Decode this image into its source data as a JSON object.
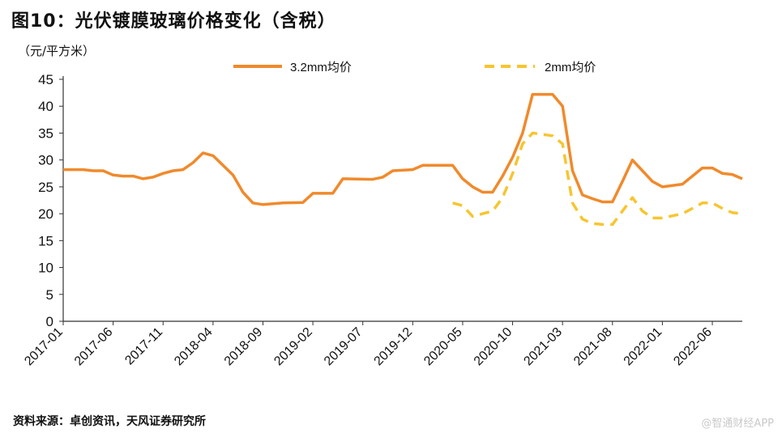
{
  "title": "图10：光伏镀膜玻璃价格变化（含税）",
  "unit": "（元/平方米）",
  "source": "资料来源：卓创资讯，天风证券研究所",
  "watermark": "@智通财经APP",
  "colors": {
    "series_3_2mm": "#F08A2C",
    "series_2mm": "#F7C531",
    "axis": "#333333"
  },
  "chart_data": {
    "type": "line",
    "xlabel": "",
    "ylabel": "",
    "ylim": [
      0,
      45
    ],
    "yticks": [
      0,
      5,
      10,
      15,
      20,
      25,
      30,
      35,
      40,
      45
    ],
    "xlim": [
      "2017-01",
      "2022-09"
    ],
    "xticks": [
      "2017-01",
      "2017-06",
      "2017-11",
      "2018-04",
      "2018-09",
      "2019-02",
      "2019-07",
      "2019-12",
      "2020-05",
      "2020-10",
      "2021-03",
      "2021-08",
      "2022-01",
      "2022-06"
    ],
    "grid": false,
    "legend": "top",
    "series": [
      {
        "name": "3.2mm均价",
        "style": "solid",
        "points": [
          [
            "2017-01",
            28.2
          ],
          [
            "2017-03",
            28.2
          ],
          [
            "2017-04",
            28.0
          ],
          [
            "2017-05",
            28.0
          ],
          [
            "2017-06",
            27.2
          ],
          [
            "2017-07",
            27.0
          ],
          [
            "2017-08",
            27.0
          ],
          [
            "2017-09",
            26.5
          ],
          [
            "2017-10",
            26.8
          ],
          [
            "2017-11",
            27.5
          ],
          [
            "2017-12",
            28.0
          ],
          [
            "2018-01",
            28.2
          ],
          [
            "2018-02",
            29.5
          ],
          [
            "2018-03",
            31.3
          ],
          [
            "2018-04",
            30.8
          ],
          [
            "2018-05",
            29.0
          ],
          [
            "2018-06",
            27.2
          ],
          [
            "2018-07",
            24.0
          ],
          [
            "2018-08",
            22.0
          ],
          [
            "2018-09",
            21.7
          ],
          [
            "2018-11",
            22.0
          ],
          [
            "2019-01",
            22.1
          ],
          [
            "2019-02",
            23.8
          ],
          [
            "2019-04",
            23.8
          ],
          [
            "2019-05",
            26.5
          ],
          [
            "2019-08",
            26.4
          ],
          [
            "2019-09",
            26.8
          ],
          [
            "2019-10",
            28.0
          ],
          [
            "2019-12",
            28.2
          ],
          [
            "2020-01",
            29.0
          ],
          [
            "2020-04",
            29.0
          ],
          [
            "2020-05",
            26.5
          ],
          [
            "2020-06",
            25.0
          ],
          [
            "2020-07",
            24.0
          ],
          [
            "2020-08",
            24.0
          ],
          [
            "2020-09",
            27.0
          ],
          [
            "2020-10",
            30.5
          ],
          [
            "2020-11",
            35.0
          ],
          [
            "2020-12",
            42.2
          ],
          [
            "2021-02",
            42.2
          ],
          [
            "2021-03",
            40.0
          ],
          [
            "2021-04",
            28.0
          ],
          [
            "2021-05",
            23.5
          ],
          [
            "2021-06",
            22.8
          ],
          [
            "2021-07",
            22.2
          ],
          [
            "2021-08",
            22.2
          ],
          [
            "2021-09",
            26.0
          ],
          [
            "2021-10",
            30.0
          ],
          [
            "2021-11",
            28.0
          ],
          [
            "2021-12",
            26.0
          ],
          [
            "2022-01",
            25.0
          ],
          [
            "2022-03",
            25.5
          ],
          [
            "2022-04",
            27.0
          ],
          [
            "2022-05",
            28.5
          ],
          [
            "2022-06",
            28.5
          ],
          [
            "2022-07",
            27.5
          ],
          [
            "2022-08",
            27.3
          ],
          [
            "2022-09",
            26.5
          ]
        ]
      },
      {
        "name": "2mm均价",
        "style": "dashed",
        "points": [
          [
            "2020-04",
            22.0
          ],
          [
            "2020-05",
            21.5
          ],
          [
            "2020-06",
            19.5
          ],
          [
            "2020-07",
            20.0
          ],
          [
            "2020-08",
            20.5
          ],
          [
            "2020-09",
            23.0
          ],
          [
            "2020-10",
            27.5
          ],
          [
            "2020-11",
            33.0
          ],
          [
            "2020-12",
            35.0
          ],
          [
            "2021-02",
            34.5
          ],
          [
            "2021-03",
            33.0
          ],
          [
            "2021-04",
            22.0
          ],
          [
            "2021-05",
            19.0
          ],
          [
            "2021-06",
            18.2
          ],
          [
            "2021-07",
            18.0
          ],
          [
            "2021-08",
            18.0
          ],
          [
            "2021-09",
            20.5
          ],
          [
            "2021-10",
            23.0
          ],
          [
            "2021-11",
            20.5
          ],
          [
            "2021-12",
            19.2
          ],
          [
            "2022-01",
            19.2
          ],
          [
            "2022-03",
            20.0
          ],
          [
            "2022-04",
            21.0
          ],
          [
            "2022-05",
            22.0
          ],
          [
            "2022-06",
            22.0
          ],
          [
            "2022-07",
            21.0
          ],
          [
            "2022-08",
            20.2
          ],
          [
            "2022-09",
            20.0
          ]
        ]
      }
    ]
  }
}
